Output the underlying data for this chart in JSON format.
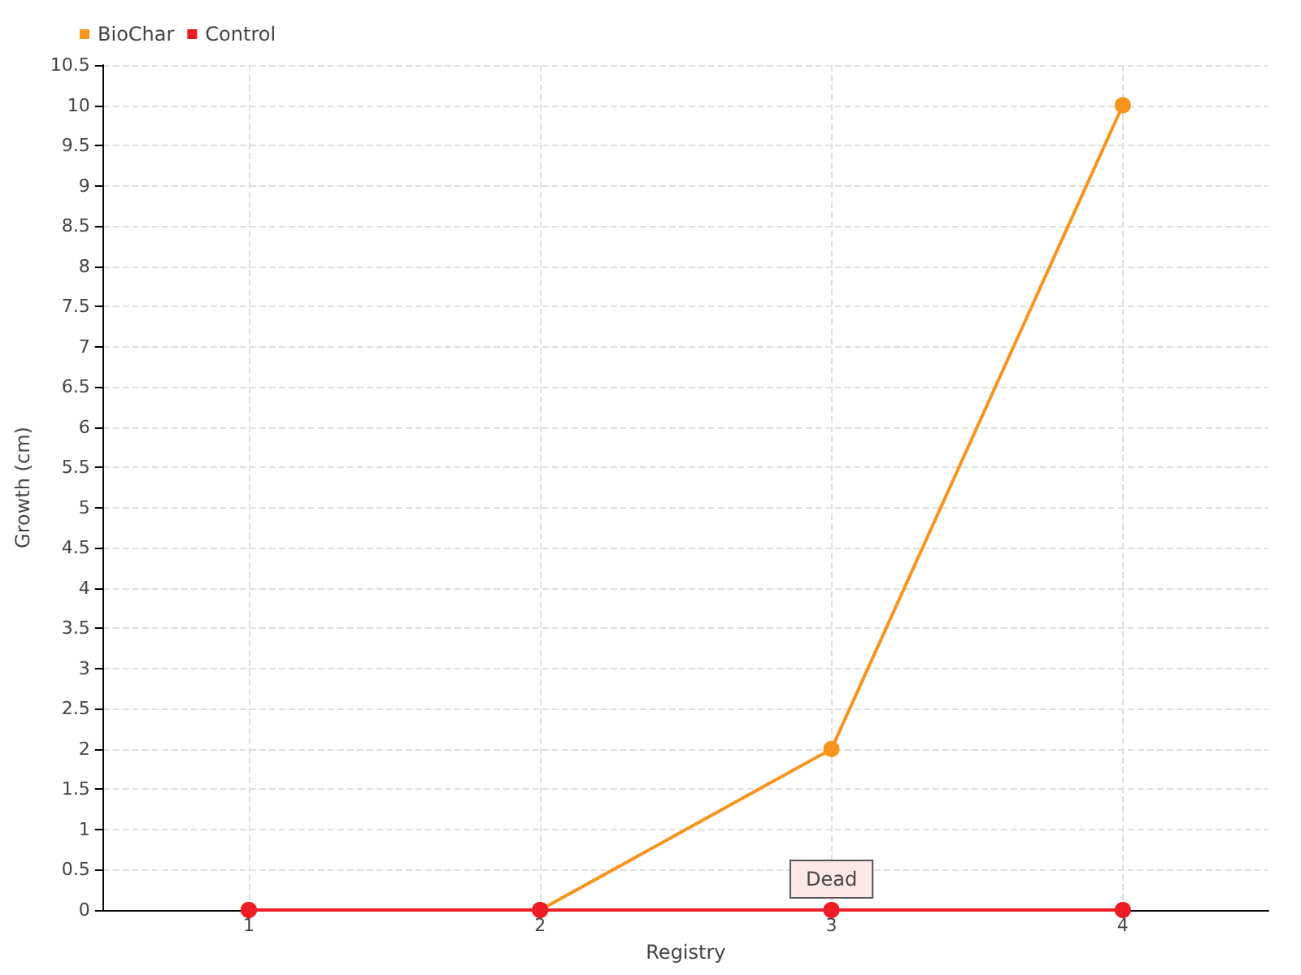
{
  "chart_data": {
    "type": "line",
    "xlabel": "Registry",
    "ylabel": "Growth (cm)",
    "x": [
      1,
      2,
      3,
      4
    ],
    "xlim": [
      0.5,
      4.5
    ],
    "xticks": [
      1,
      2,
      3,
      4
    ],
    "ylim": [
      0,
      10.5
    ],
    "yticks": [
      0,
      0.5,
      1,
      1.5,
      2,
      2.5,
      3,
      3.5,
      4,
      4.5,
      5,
      5.5,
      6,
      6.5,
      7,
      7.5,
      8,
      8.5,
      9,
      9.5,
      10,
      10.5
    ],
    "series": [
      {
        "name": "BioChar",
        "color": "#f7941d",
        "values": [
          0,
          0,
          2,
          10
        ]
      },
      {
        "name": "Control",
        "color": "#ee1c24",
        "values": [
          0,
          0,
          0,
          0
        ]
      }
    ],
    "annotations": [
      {
        "text": "Dead",
        "x": 3,
        "y": 0
      }
    ],
    "grid": true,
    "legend": "top left",
    "marker": "circle",
    "line_style": "solid"
  }
}
